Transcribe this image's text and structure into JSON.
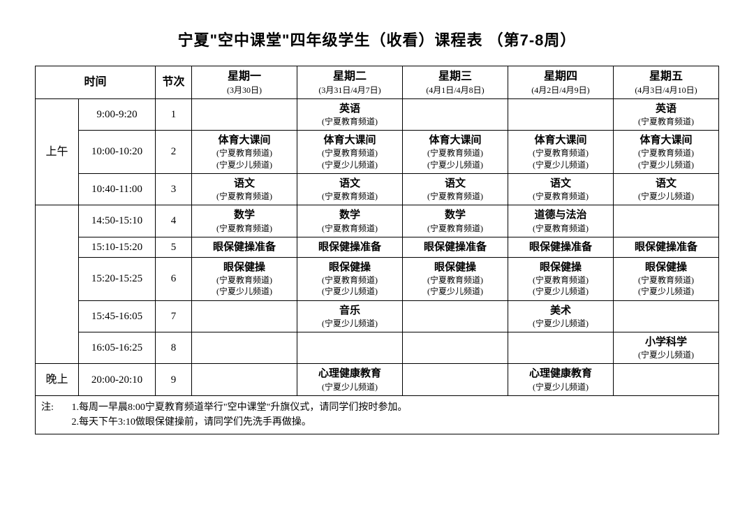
{
  "title": "宁夏\"空中课堂\"四年级学生（收看）课程表 （第7-8周）",
  "headers": {
    "time": "时间",
    "period": "节次",
    "days": [
      {
        "name": "星期一",
        "dates": "(3月30日)"
      },
      {
        "name": "星期二",
        "dates": "(3月31日/4月7日)"
      },
      {
        "name": "星期三",
        "dates": "(4月1日/4月8日)"
      },
      {
        "name": "星期四",
        "dates": "(4月2日/4月9日)"
      },
      {
        "name": "星期五",
        "dates": "(4月3日/4月10日)"
      }
    ]
  },
  "sessions": {
    "morning": "上午",
    "evening": "晚上"
  },
  "rows": [
    {
      "time": "9:00-9:20",
      "period": "1",
      "cells": [
        {
          "main": "",
          "subs": []
        },
        {
          "main": "英语",
          "subs": [
            "(宁夏教育频道)"
          ]
        },
        {
          "main": "",
          "subs": []
        },
        {
          "main": "",
          "subs": []
        },
        {
          "main": "英语",
          "subs": [
            "(宁夏教育频道)"
          ]
        }
      ]
    },
    {
      "time": "10:00-10:20",
      "period": "2",
      "cells": [
        {
          "main": "体育大课间",
          "subs": [
            "(宁夏教育频道)",
            "(宁夏少儿频道)"
          ]
        },
        {
          "main": "体育大课间",
          "subs": [
            "(宁夏教育频道)",
            "(宁夏少儿频道)"
          ]
        },
        {
          "main": "体育大课间",
          "subs": [
            "(宁夏教育频道)",
            "(宁夏少儿频道)"
          ]
        },
        {
          "main": "体育大课间",
          "subs": [
            "(宁夏教育频道)",
            "(宁夏少儿频道)"
          ]
        },
        {
          "main": "体育大课间",
          "subs": [
            "(宁夏教育频道)",
            "(宁夏少儿频道)"
          ]
        }
      ]
    },
    {
      "time": "10:40-11:00",
      "period": "3",
      "cells": [
        {
          "main": "语文",
          "subs": [
            "(宁夏教育频道)"
          ]
        },
        {
          "main": "语文",
          "subs": [
            "(宁夏教育频道)"
          ]
        },
        {
          "main": "语文",
          "subs": [
            "(宁夏教育频道)"
          ]
        },
        {
          "main": "语文",
          "subs": [
            "(宁夏教育频道)"
          ]
        },
        {
          "main": "语文",
          "subs": [
            "(宁夏少儿频道)"
          ]
        }
      ]
    },
    {
      "time": "14:50-15:10",
      "period": "4",
      "cells": [
        {
          "main": "数学",
          "subs": [
            "(宁夏教育频道)"
          ]
        },
        {
          "main": "数学",
          "subs": [
            "(宁夏教育频道)"
          ]
        },
        {
          "main": "数学",
          "subs": [
            "(宁夏教育频道)"
          ]
        },
        {
          "main": "道德与法治",
          "subs": [
            "(宁夏教育频道)"
          ]
        },
        {
          "main": "",
          "subs": []
        }
      ]
    },
    {
      "time": "15:10-15:20",
      "period": "5",
      "cells": [
        {
          "main": "眼保健操准备",
          "subs": []
        },
        {
          "main": "眼保健操准备",
          "subs": []
        },
        {
          "main": "眼保健操准备",
          "subs": []
        },
        {
          "main": "眼保健操准备",
          "subs": []
        },
        {
          "main": "眼保健操准备",
          "subs": []
        }
      ]
    },
    {
      "time": "15:20-15:25",
      "period": "6",
      "cells": [
        {
          "main": "眼保健操",
          "subs": [
            "(宁夏教育频道)",
            "(宁夏少儿频道)"
          ]
        },
        {
          "main": "眼保健操",
          "subs": [
            "(宁夏教育频道)",
            "(宁夏少儿频道)"
          ]
        },
        {
          "main": "眼保健操",
          "subs": [
            "(宁夏教育频道)",
            "(宁夏少儿频道)"
          ]
        },
        {
          "main": "眼保健操",
          "subs": [
            "(宁夏教育频道)",
            "(宁夏少儿频道)"
          ]
        },
        {
          "main": "眼保健操",
          "subs": [
            "(宁夏教育频道)",
            "(宁夏少儿频道)"
          ]
        }
      ]
    },
    {
      "time": "15:45-16:05",
      "period": "7",
      "cells": [
        {
          "main": "",
          "subs": []
        },
        {
          "main": "音乐",
          "subs": [
            "(宁夏少儿频道)"
          ]
        },
        {
          "main": "",
          "subs": []
        },
        {
          "main": "美术",
          "subs": [
            "(宁夏少儿频道)"
          ]
        },
        {
          "main": "",
          "subs": []
        }
      ]
    },
    {
      "time": "16:05-16:25",
      "period": "8",
      "cells": [
        {
          "main": "",
          "subs": []
        },
        {
          "main": "",
          "subs": []
        },
        {
          "main": "",
          "subs": []
        },
        {
          "main": "",
          "subs": []
        },
        {
          "main": "小学科学",
          "subs": [
            "(宁夏少儿频道)"
          ]
        }
      ]
    },
    {
      "time": "20:00-20:10",
      "period": "9",
      "cells": [
        {
          "main": "",
          "subs": []
        },
        {
          "main": "心理健康教育",
          "subs": [
            "(宁夏少儿频道)"
          ]
        },
        {
          "main": "",
          "subs": []
        },
        {
          "main": "心理健康教育",
          "subs": [
            "(宁夏少儿频道)"
          ]
        },
        {
          "main": "",
          "subs": []
        }
      ]
    }
  ],
  "notes": {
    "label": "注:",
    "lines": [
      "1.每周一早晨8:00宁夏教育频道举行\"空中课堂\"升旗仪式，请同学们按时参加。",
      "2.每天下午3:10做眼保健操前，请同学们先洗手再做操。"
    ]
  },
  "style": {
    "border_color": "#000000",
    "background": "#ffffff",
    "title_fontsize": 22,
    "header_main_fontsize": 16,
    "header_sub_fontsize": 12,
    "cell_main_fontsize": 15,
    "cell_sub_fontsize": 12,
    "notes_fontsize": 14
  }
}
